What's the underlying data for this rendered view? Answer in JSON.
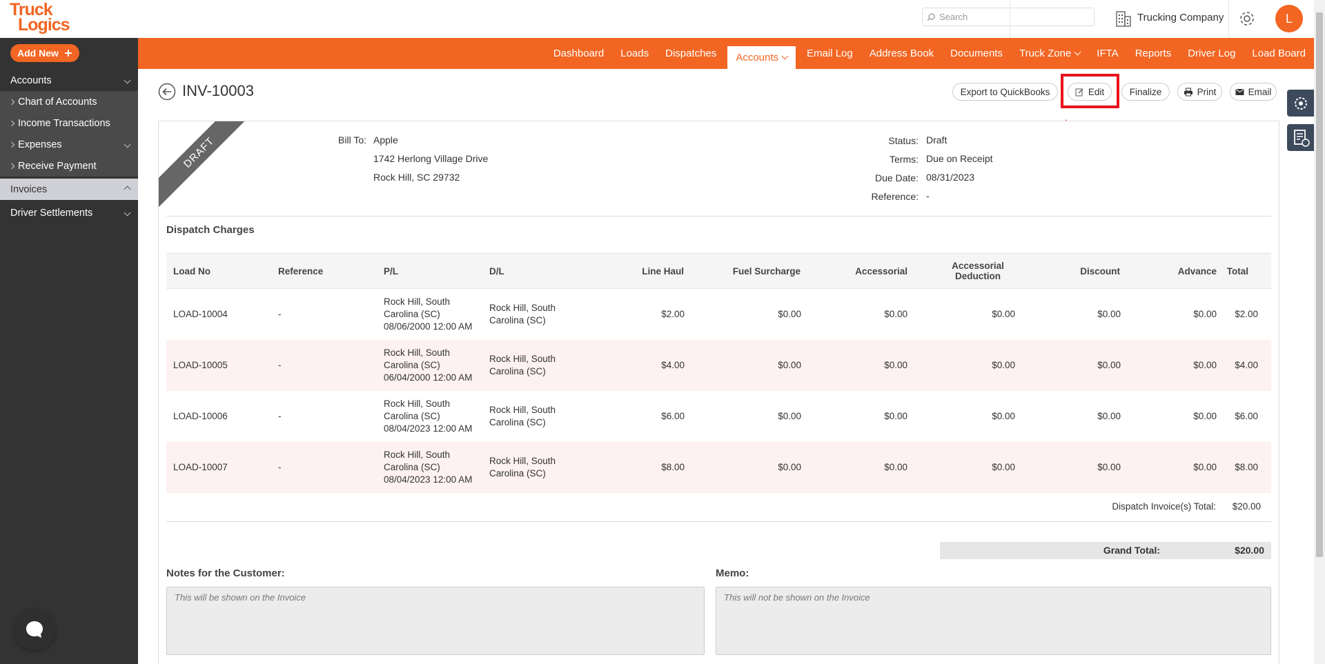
{
  "header": {
    "logo_top": "Truck",
    "logo_bottom": "Logics",
    "search_placeholder": "Search",
    "company": "Trucking Company",
    "avatar": "L"
  },
  "sidebar": {
    "add_new": "Add New",
    "menu": [
      {
        "label": "Accounts",
        "children": [
          {
            "label": "Chart of Accounts"
          },
          {
            "label": "Income Transactions"
          },
          {
            "label": "Expenses",
            "expandable": true
          },
          {
            "label": "Receive Payment"
          }
        ]
      },
      {
        "label": "Invoices",
        "active": true
      },
      {
        "label": "Driver Settlements"
      }
    ]
  },
  "nav": [
    {
      "label": "Dashboard"
    },
    {
      "label": "Loads"
    },
    {
      "label": "Dispatches"
    },
    {
      "label": "Accounts",
      "active": true,
      "dropdown": true
    },
    {
      "label": "Email Log"
    },
    {
      "label": "Address Book"
    },
    {
      "label": "Documents"
    },
    {
      "label": "Truck Zone",
      "dropdown": true
    },
    {
      "label": "IFTA"
    },
    {
      "label": "Reports"
    },
    {
      "label": "Driver Log"
    },
    {
      "label": "Load Board"
    }
  ],
  "invoice": {
    "title": "INV-10003",
    "buttons": [
      "Export to QuickBooks",
      "Edit",
      "Finalize",
      "Print",
      "Email"
    ],
    "stamp": "DRAFT",
    "bill_to_label": "Bill To:",
    "bill_to": [
      "Apple",
      "1742 Herlong Village Drive",
      "Rock Hill, SC 29732"
    ],
    "details": [
      {
        "label": "Status:",
        "value": "Draft"
      },
      {
        "label": "Terms:",
        "value": "Due on Receipt"
      },
      {
        "label": "Due Date:",
        "value": "08/31/2023"
      },
      {
        "label": "Reference:",
        "value": "-"
      }
    ]
  },
  "charges": {
    "title": "Dispatch Charges",
    "columns": [
      "Load No",
      "Reference",
      "P/L",
      "D/L",
      "Line Haul",
      "Fuel Surcharge",
      "Accessorial",
      "Accessorial Deduction",
      "Discount",
      "Advance",
      "Total"
    ],
    "rows": [
      {
        "load": "LOAD-10004",
        "reference": "-",
        "pl": "Rock Hill, South Carolina (SC)",
        "pl_date": "08/06/2000 12:00 AM",
        "dl": "Rock Hill, South Carolina (SC)",
        "amounts": [
          "$2.00",
          "$0.00",
          "$0.00",
          "$0.00",
          "$0.00",
          "$0.00",
          "$2.00"
        ]
      },
      {
        "load": "LOAD-10005",
        "reference": "-",
        "pl": "Rock Hill, South Carolina (SC)",
        "pl_date": "06/04/2000 12:00 AM",
        "dl": "Rock Hill, South Carolina (SC)",
        "amounts": [
          "$4.00",
          "$0.00",
          "$0.00",
          "$0.00",
          "$0.00",
          "$0.00",
          "$4.00"
        ]
      },
      {
        "load": "LOAD-10006",
        "reference": "-",
        "pl": "Rock Hill, South Carolina (SC)",
        "pl_date": "08/04/2023 12:00 AM",
        "dl": "Rock Hill, South Carolina (SC)",
        "amounts": [
          "$6.00",
          "$0.00",
          "$0.00",
          "$0.00",
          "$0.00",
          "$0.00",
          "$6.00"
        ]
      },
      {
        "load": "LOAD-10007",
        "reference": "-",
        "pl": "Rock Hill, South Carolina (SC)",
        "pl_date": "08/04/2023 12:00 AM",
        "dl": "Rock Hill, South Carolina (SC)",
        "amounts": [
          "$8.00",
          "$0.00",
          "$0.00",
          "$0.00",
          "$0.00",
          "$0.00",
          "$8.00"
        ]
      }
    ],
    "dispatch_total_label": "Dispatch Invoice(s) Total:",
    "dispatch_total": "$20.00",
    "grand_total_label": "Grand Total:",
    "grand_total": "$20.00"
  },
  "notes": {
    "label": "Notes for the Customer:",
    "placeholder": "This will be shown on the Invoice"
  },
  "memo": {
    "label": "Memo:",
    "placeholder": "This will not be shown on the Invoice"
  }
}
